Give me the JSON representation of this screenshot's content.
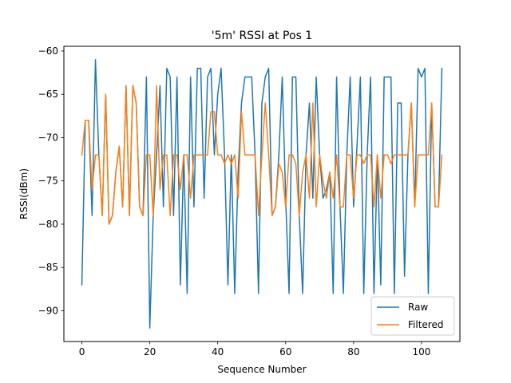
{
  "chart_data": {
    "type": "line",
    "title": "'5m' RSSI at Pos 1",
    "xlabel": "Sequence Number",
    "ylabel": "RSSI(dBm)",
    "xlim": [
      -5.3,
      111.3
    ],
    "ylim": [
      -93.55,
      -59.45
    ],
    "xticks": [
      0,
      20,
      40,
      60,
      80,
      100
    ],
    "yticks": [
      -90,
      -85,
      -80,
      -75,
      -70,
      -65,
      -60
    ],
    "grid": false,
    "legend_position": "lower right",
    "series": [
      {
        "name": "Raw",
        "color": "#1f77b4",
        "values": [
          -87,
          -68,
          -68,
          -79,
          -61,
          -72,
          -79,
          -65,
          -80,
          -79,
          -74,
          -71,
          -78,
          -64,
          -79,
          -64,
          -66,
          -78,
          -79,
          -63,
          -92,
          -79,
          -72,
          -64,
          -78,
          -62,
          -63,
          -79,
          -63,
          -87,
          -72,
          -88,
          -63,
          -78,
          -62,
          -62,
          -77,
          -63,
          -62,
          -72,
          -65,
          -62,
          -72,
          -87,
          -72,
          -88,
          -74,
          -66,
          -63,
          -63,
          -63,
          -72,
          -88,
          -66,
          -63,
          -62,
          -79,
          -78,
          -72,
          -63,
          -77,
          -88,
          -63,
          -63,
          -79,
          -88,
          -72,
          -66,
          -77,
          -63,
          -72,
          -77,
          -76,
          -74,
          -88,
          -63,
          -78,
          -88,
          -72,
          -63,
          -78,
          -71,
          -63,
          -88,
          -72,
          -63,
          -88,
          -72,
          -87,
          -63,
          -63,
          -63,
          -88,
          -66,
          -66,
          -86,
          -72,
          -66,
          -78,
          -62,
          -63,
          -62,
          -88,
          -66,
          -78,
          -78,
          -62
        ]
      },
      {
        "name": "Filtered",
        "color": "#ff7f0e",
        "values": [
          -72,
          -68,
          -68,
          -76,
          -72,
          -72,
          -79,
          -65,
          -80,
          -79,
          -74,
          -71,
          -78,
          -64,
          -79,
          -64,
          -66,
          -78,
          -79,
          -72,
          -72,
          -79,
          -64,
          -76,
          -72,
          -72,
          -79,
          -72,
          -72,
          -76,
          -72,
          -72,
          -77,
          -72,
          -72,
          -72,
          -72,
          -72,
          -67,
          -67,
          -72,
          -72,
          -73,
          -72,
          -73,
          -72,
          -77,
          -67,
          -72,
          -72,
          -72,
          -72,
          -79,
          -72,
          -66,
          -72,
          -79,
          -78,
          -73,
          -74,
          -78,
          -72,
          -72,
          -73,
          -79,
          -74,
          -72,
          -77,
          -66,
          -78,
          -72,
          -75,
          -77,
          -74,
          -77,
          -72,
          -78,
          -78,
          -72,
          -72,
          -77,
          -72,
          -72,
          -73,
          -72,
          -72,
          -78,
          -72,
          -77,
          -72,
          -72,
          -73,
          -72,
          -72,
          -72,
          -72,
          -72,
          -66,
          -78,
          -72,
          -72,
          -72,
          -72,
          -66,
          -78,
          -78,
          -72
        ]
      }
    ]
  }
}
